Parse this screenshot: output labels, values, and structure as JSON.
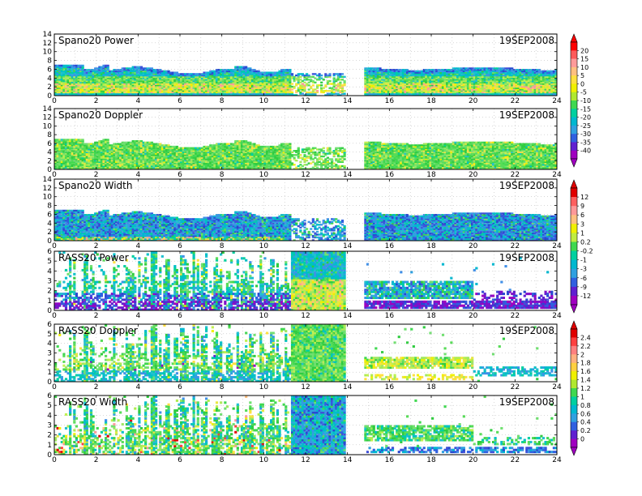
{
  "figure": {
    "date_label": "19SEP2008"
  },
  "chart_data": [
    {
      "type": "heatmap",
      "title": "Spano20  Power",
      "xlim": [
        0,
        24
      ],
      "ylim": [
        0,
        14
      ],
      "xticks": [
        0,
        2,
        4,
        6,
        8,
        10,
        12,
        14,
        16,
        18,
        20,
        22,
        24
      ],
      "yticks": [
        0,
        2,
        4,
        6,
        8,
        10,
        12,
        14
      ],
      "grid": true,
      "data_gaps_hours": [
        [
          11.3,
          13.9
        ],
        [
          14.0,
          14.8
        ]
      ],
      "colorbar": "cb1",
      "field": "spano_power"
    },
    {
      "type": "heatmap",
      "title": "Spano20  Doppler",
      "xlim": [
        0,
        24
      ],
      "ylim": [
        0,
        14
      ],
      "xticks": [
        0,
        2,
        4,
        6,
        8,
        10,
        12,
        14,
        16,
        18,
        20,
        22,
        24
      ],
      "yticks": [
        0,
        2,
        4,
        6,
        8,
        10,
        12,
        14
      ],
      "grid": true,
      "colorbar": "cb1",
      "field": "spano_doppler"
    },
    {
      "type": "heatmap",
      "title": "Spano20  Width",
      "xlim": [
        0,
        24
      ],
      "ylim": [
        0,
        14
      ],
      "xticks": [
        0,
        2,
        4,
        6,
        8,
        10,
        12,
        14,
        16,
        18,
        20,
        22,
        24
      ],
      "yticks": [
        0,
        2,
        4,
        6,
        8,
        10,
        12,
        14
      ],
      "grid": true,
      "colorbar": "cb2",
      "field": "spano_width"
    },
    {
      "type": "heatmap",
      "title": "RASS20  Power",
      "xlim": [
        0,
        24
      ],
      "ylim": [
        0,
        6
      ],
      "xticks": [
        0,
        2,
        4,
        6,
        8,
        10,
        12,
        14,
        16,
        18,
        20,
        22,
        24
      ],
      "yticks": [
        0,
        1,
        2,
        3,
        4,
        5,
        6
      ],
      "grid": true,
      "colorbar": "cb2",
      "field": "rass_power"
    },
    {
      "type": "heatmap",
      "title": "RASS20  Doppler",
      "xlim": [
        0,
        24
      ],
      "ylim": [
        0,
        6
      ],
      "xticks": [
        0,
        2,
        4,
        6,
        8,
        10,
        12,
        14,
        16,
        18,
        20,
        22,
        24
      ],
      "yticks": [
        0,
        1,
        2,
        3,
        4,
        5,
        6
      ],
      "grid": true,
      "colorbar": "cb3",
      "field": "rass_doppler"
    },
    {
      "type": "heatmap",
      "title": "RASS20  Width",
      "xlim": [
        0,
        24
      ],
      "ylim": [
        0,
        6
      ],
      "xticks": [
        0,
        2,
        4,
        6,
        8,
        10,
        12,
        14,
        16,
        18,
        20,
        22,
        24
      ],
      "yticks": [
        0,
        1,
        2,
        3,
        4,
        5,
        6
      ],
      "grid": true,
      "colorbar": "cb3",
      "field": "rass_width"
    }
  ],
  "colorbars": {
    "cb1": {
      "labels": [
        "20",
        "15",
        "10",
        "5",
        "0",
        "-5",
        "-10",
        "-15",
        "-20",
        "-25",
        "-30",
        "-35",
        "-40"
      ],
      "colors": [
        "#ff0000",
        "#ff5a5a",
        "#ff9a9a",
        "#ffc080",
        "#ffe040",
        "#f0f000",
        "#b0e830",
        "#40d850",
        "#00d0a0",
        "#00b8d0",
        "#30a0e0",
        "#3060e0",
        "#6020d0",
        "#a000c0"
      ]
    },
    "cb2": {
      "labels": [
        "12",
        "9",
        "6",
        "3",
        "1",
        "0.2",
        "-0.2",
        "-1",
        "-3",
        "-6",
        "-9",
        "-12"
      ],
      "colors": [
        "#e00000",
        "#ff6060",
        "#ff9999",
        "#ffc080",
        "#f0f000",
        "#c0ec40",
        "#40d850",
        "#00d0a0",
        "#00b8d0",
        "#30a0e0",
        "#3060e0",
        "#6020d0",
        "#a000c0"
      ]
    },
    "cb3": {
      "labels": [
        "2.4",
        "2.2",
        "2",
        "1.8",
        "1.6",
        "1.4",
        "1.2",
        "1",
        "0.8",
        "0.6",
        "0.4",
        "0.2",
        "0"
      ],
      "colors": [
        "#e00000",
        "#ff4040",
        "#ff8080",
        "#ffb080",
        "#ffd040",
        "#f0f000",
        "#b0e830",
        "#40d850",
        "#00d0a0",
        "#00b8d0",
        "#30a0e0",
        "#3060e0",
        "#6020d0",
        "#a000c0"
      ]
    }
  }
}
